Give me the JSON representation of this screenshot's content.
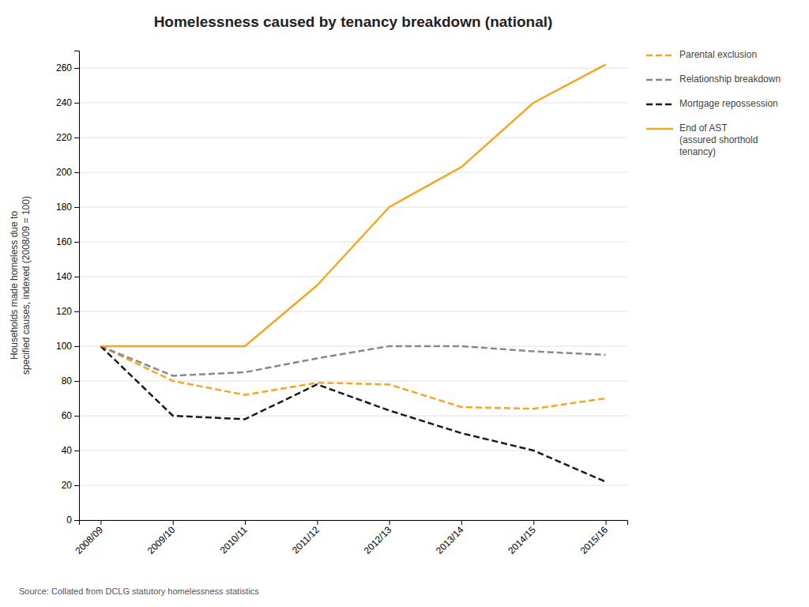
{
  "chart_data": {
    "type": "line",
    "title": "Homelessness caused by tenancy breakdown (national)",
    "ylabel": "Households made homeless due to\nspecified causes, indexed (2008/09 = 100)",
    "source": "Source: Collated from DCLG statutory homelessness statistics",
    "categories": [
      "2008/09",
      "2009/10",
      "2010/11",
      "2011/12",
      "2012/13",
      "2013/14",
      "2014/15",
      "2015/16"
    ],
    "series": [
      {
        "name": "Parental exclusion",
        "color": "#F5A623",
        "line_style": "dashed",
        "values": [
          100,
          80,
          72,
          79,
          78,
          65,
          64,
          70
        ]
      },
      {
        "name": "Relationship breakdown",
        "color": "#888888",
        "line_style": "dashed",
        "values": [
          100,
          83,
          85,
          93,
          100,
          100,
          97,
          95
        ]
      },
      {
        "name": "Mortgage repossession",
        "color": "#1a1a1a",
        "line_style": "dashed",
        "values": [
          100,
          60,
          58,
          78,
          63,
          50,
          40,
          22
        ]
      },
      {
        "name": "End of AST\n(assured shorthold\ntenancy)",
        "color": "#F5A623",
        "line_style": "solid",
        "values": [
          100,
          100,
          100,
          135,
          180,
          203,
          240,
          262
        ]
      }
    ],
    "ylim": [
      0,
      270
    ],
    "yticks": [
      0,
      20,
      40,
      60,
      80,
      100,
      120,
      140,
      160,
      180,
      200,
      220,
      240,
      260
    ],
    "grid": true,
    "legend": "right"
  }
}
